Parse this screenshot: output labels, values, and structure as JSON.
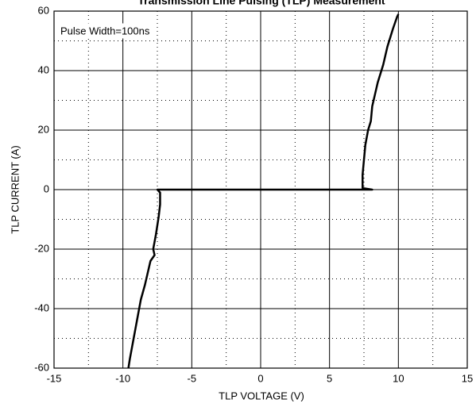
{
  "chart_data": {
    "type": "line",
    "title": "Transmission Line Pulsing (TLP) Measurement",
    "annotation": "Pulse Width=100ns",
    "x_label": "TLP VOLTAGE   (V)",
    "y_label": "TLP CURRENT   (A)",
    "x": [
      -9.6,
      -9.5,
      -9.3,
      -9.1,
      -8.9,
      -8.7,
      -8.4,
      -8.2,
      -8.0,
      -7.7,
      -7.8,
      -7.6,
      -7.5,
      -7.4,
      -7.3,
      -7.3,
      -7.5,
      8.1,
      7.4,
      7.4,
      7.5,
      7.6,
      7.8,
      8.0,
      8.1,
      8.3,
      8.5,
      8.9,
      9.2,
      9.6,
      9.9,
      10.0
    ],
    "values": [
      -60,
      -57,
      -52,
      -47,
      -42,
      -37,
      -32,
      -28,
      -24,
      -22,
      -20,
      -15,
      -12,
      -9,
      -5,
      -1,
      0,
      0,
      0.5,
      5,
      10,
      15,
      20,
      23,
      28,
      32,
      36,
      42,
      48,
      54,
      58,
      59
    ],
    "color": "#000000",
    "xlim": [
      -15,
      15
    ],
    "xticks": [
      -15,
      -10,
      -5,
      0,
      5,
      10,
      15
    ],
    "ylim": [
      -60,
      60
    ],
    "yticks": [
      -60,
      -40,
      -20,
      0,
      20,
      40,
      60
    ],
    "xminorticks": [
      -12.5,
      -7.5,
      -2.5,
      2.5,
      7.5,
      12.5
    ],
    "yminorticks": [
      -50,
      -30,
      -10,
      10,
      30,
      50
    ],
    "grid": true
  }
}
